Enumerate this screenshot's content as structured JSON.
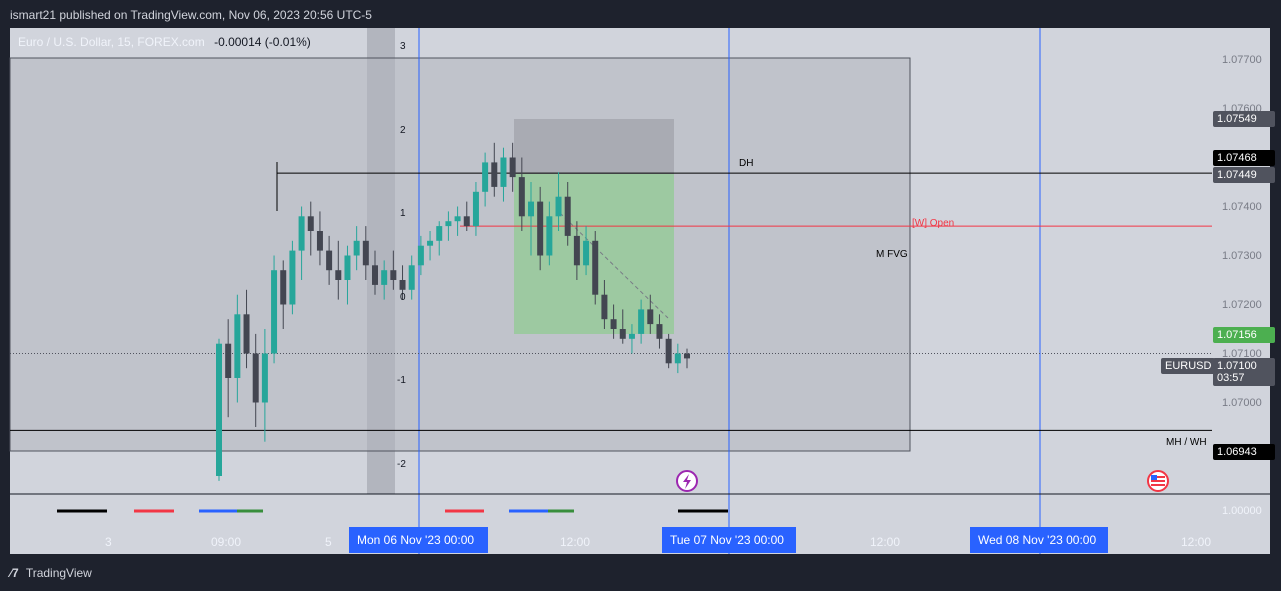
{
  "header": {
    "publish_text": "ismart21 published on TradingView.com, Nov 06, 2023 20:56 UTC-5"
  },
  "legend": {
    "symbol": "Euro / U.S. Dollar, 15, FOREX.com",
    "change": "-0.00014 (-0.01%)"
  },
  "footer": {
    "logo_icon": "tradingview-logo-icon",
    "brand": "TradingView"
  },
  "chart_data": {
    "type": "candlestick",
    "symbol": "EURUSD",
    "y_axis": {
      "range": [
        1.0685,
        1.0775
      ],
      "ticks": [
        "1.07700",
        "1.07600",
        "1.07500",
        "1.07400",
        "1.07300",
        "1.07200",
        "1.07100",
        "1.07000",
        "1.06900"
      ],
      "tick_values": [
        1.077,
        1.076,
        1.075,
        1.074,
        1.073,
        1.072,
        1.071,
        1.07,
        1.069
      ]
    },
    "indicator_axis": {
      "ticks": [
        "3",
        "2",
        "1",
        "0",
        "-1",
        "-2"
      ],
      "tick_values": [
        3,
        2,
        1,
        0,
        -1,
        -2
      ]
    },
    "lower_pane": {
      "tick": "1.00000"
    },
    "x_axis": {
      "labels": [
        "3",
        "09:00",
        "5",
        "12:00",
        "12:00",
        "12:00"
      ],
      "highlighted": [
        "Mon 06 Nov '23   00:00",
        "Tue 07 Nov '23   00:00",
        "Wed 08 Nov '23   00:00"
      ]
    },
    "price_labels": [
      {
        "value": "1.07549",
        "color": "#50535e"
      },
      {
        "value": "1.07468",
        "color": "#000000"
      },
      {
        "value": "1.07449",
        "color": "#50535e"
      },
      {
        "value": "1.07156",
        "color": "#4caf50"
      },
      {
        "value": "1.06943",
        "color": "#000000"
      }
    ],
    "current": {
      "symbol": "EURUSD",
      "price": "1.07100",
      "countdown": "03:57"
    },
    "annotations": {
      "dh": "DH",
      "weekly_open": "[W] Open",
      "m_fvg": "M FVG",
      "mh_wh": "MH / WH"
    },
    "levels": {
      "dh": 1.07468,
      "weekly_open": 1.0736,
      "mh_wh": 1.06943,
      "current": 1.071
    },
    "colors": {
      "up": "#26a69a",
      "down": "#434651",
      "green_zone": "#7cc07f",
      "red_line": "#f23645",
      "blue_line": "#2962ff"
    },
    "candles": [
      [
        1.0685,
        1.0713,
        1.0684,
        1.0712
      ],
      [
        1.0712,
        1.0717,
        1.0697,
        1.0705
      ],
      [
        1.0705,
        1.0722,
        1.07,
        1.0718
      ],
      [
        1.0718,
        1.0723,
        1.0707,
        1.071
      ],
      [
        1.071,
        1.0714,
        1.0695,
        1.07
      ],
      [
        1.07,
        1.0715,
        1.0692,
        1.071
      ],
      [
        1.071,
        1.073,
        1.0708,
        1.0727
      ],
      [
        1.0727,
        1.0729,
        1.0715,
        1.072
      ],
      [
        1.072,
        1.0733,
        1.0718,
        1.0731
      ],
      [
        1.0731,
        1.074,
        1.0725,
        1.0738
      ],
      [
        1.0738,
        1.0741,
        1.073,
        1.0735
      ],
      [
        1.0735,
        1.0739,
        1.0728,
        1.0731
      ],
      [
        1.0731,
        1.0734,
        1.0724,
        1.0727
      ],
      [
        1.0727,
        1.0733,
        1.0721,
        1.0725
      ],
      [
        1.0725,
        1.0732,
        1.072,
        1.073
      ],
      [
        1.073,
        1.0736,
        1.0727,
        1.0733
      ],
      [
        1.0733,
        1.0736,
        1.0725,
        1.0728
      ],
      [
        1.0728,
        1.0731,
        1.0722,
        1.0724
      ],
      [
        1.0724,
        1.0729,
        1.0721,
        1.0727
      ],
      [
        1.0727,
        1.0731,
        1.0723,
        1.0725
      ],
      [
        1.0725,
        1.0728,
        1.0721,
        1.0723
      ],
      [
        1.0723,
        1.073,
        1.0721,
        1.0728
      ],
      [
        1.0728,
        1.0734,
        1.0726,
        1.0732
      ],
      [
        1.0732,
        1.0735,
        1.0729,
        1.0733
      ],
      [
        1.0733,
        1.0737,
        1.073,
        1.0736
      ],
      [
        1.0736,
        1.0739,
        1.0733,
        1.0737
      ],
      [
        1.0737,
        1.074,
        1.0734,
        1.0738
      ],
      [
        1.0738,
        1.0741,
        1.0735,
        1.0736
      ],
      [
        1.0736,
        1.0745,
        1.0734,
        1.0743
      ],
      [
        1.0743,
        1.0751,
        1.074,
        1.0749
      ],
      [
        1.0749,
        1.0753,
        1.0742,
        1.0744
      ],
      [
        1.0744,
        1.0752,
        1.0741,
        1.075
      ],
      [
        1.075,
        1.0753,
        1.0743,
        1.0746
      ],
      [
        1.0746,
        1.075,
        1.0735,
        1.0738
      ],
      [
        1.0738,
        1.0745,
        1.073,
        1.0741
      ],
      [
        1.0741,
        1.0744,
        1.0727,
        1.073
      ],
      [
        1.073,
        1.0741,
        1.0728,
        1.0738
      ],
      [
        1.0738,
        1.0747,
        1.0735,
        1.0742
      ],
      [
        1.0742,
        1.0745,
        1.0732,
        1.0734
      ],
      [
        1.0734,
        1.0737,
        1.0725,
        1.0728
      ],
      [
        1.0728,
        1.0736,
        1.0726,
        1.0733
      ],
      [
        1.0733,
        1.0735,
        1.072,
        1.0722
      ],
      [
        1.0722,
        1.0725,
        1.0715,
        1.0717
      ],
      [
        1.0717,
        1.072,
        1.0713,
        1.0715
      ],
      [
        1.0715,
        1.0719,
        1.0712,
        1.0713
      ],
      [
        1.0713,
        1.0716,
        1.071,
        1.0714
      ],
      [
        1.0714,
        1.0721,
        1.0712,
        1.0719
      ],
      [
        1.0719,
        1.0722,
        1.0714,
        1.0716
      ],
      [
        1.0716,
        1.0718,
        1.0711,
        1.0713
      ],
      [
        1.0713,
        1.0714,
        1.0707,
        1.0708
      ],
      [
        1.0708,
        1.0712,
        1.0706,
        1.071
      ],
      [
        1.071,
        1.0711,
        1.0707,
        1.0709
      ]
    ]
  }
}
